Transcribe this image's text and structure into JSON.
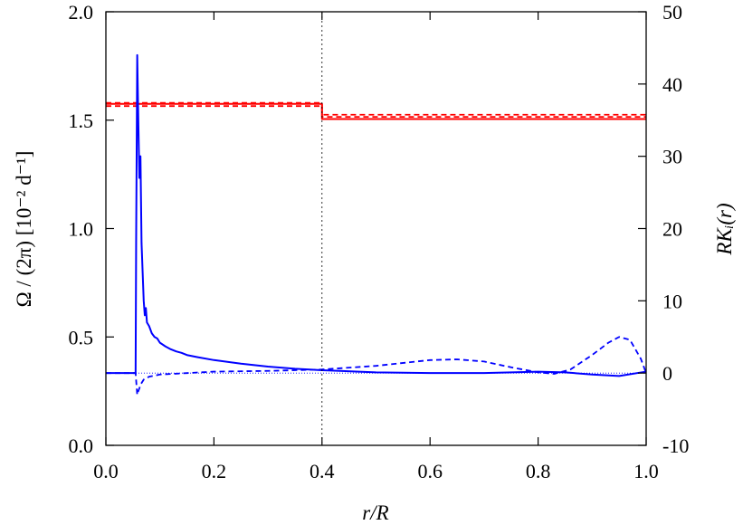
{
  "chart_data": {
    "type": "line",
    "xlabel": "r/R",
    "ylabel_left": "Ω / (2π) [10⁻² d⁻¹]",
    "ylabel_right": "RKᵢ(r)",
    "xlim": [
      0.0,
      1.0
    ],
    "ylim_left": [
      0.0,
      2.0
    ],
    "ylim_right": [
      -10,
      50
    ],
    "x_ticks": [
      "0.0",
      "0.2",
      "0.4",
      "0.6",
      "0.8",
      "1.0"
    ],
    "y_left_ticks": [
      "0.0",
      "0.5",
      "1.0",
      "1.5",
      "2.0"
    ],
    "y_right_ticks": [
      "-10",
      "0",
      "10",
      "20",
      "30",
      "40",
      "50"
    ],
    "grid": false,
    "vertical_line_x": 0.4,
    "series": [
      {
        "axis": "left",
        "color": "#ff0000",
        "style": "solid",
        "x": [
          0.0,
          0.4,
          0.4,
          1.0
        ],
        "y": [
          1.575,
          1.575,
          1.505,
          1.505
        ]
      },
      {
        "axis": "left",
        "color": "#ff0000",
        "style": "dashed",
        "x": [
          0.0,
          0.4,
          0.4,
          1.0
        ],
        "y": [
          1.565,
          1.565,
          1.525,
          1.525
        ]
      },
      {
        "axis": "left",
        "color": "#ff0000",
        "style": "dashed",
        "x": [
          0.0,
          0.4,
          0.4,
          1.0
        ],
        "y": [
          1.58,
          1.58,
          1.515,
          1.515
        ]
      },
      {
        "axis": "right",
        "color": "#0000ff",
        "style": "solid",
        "x": [
          0.0,
          0.055,
          0.056,
          0.058,
          0.06,
          0.062,
          0.064,
          0.066,
          0.068,
          0.07,
          0.072,
          0.074,
          0.076,
          0.08,
          0.085,
          0.09,
          0.095,
          0.1,
          0.11,
          0.12,
          0.13,
          0.14,
          0.15,
          0.17,
          0.2,
          0.25,
          0.3,
          0.35,
          0.4,
          0.5,
          0.6,
          0.7,
          0.8,
          0.85,
          0.9,
          0.95,
          1.0
        ],
        "y": [
          0,
          0,
          18,
          44,
          35,
          27,
          30,
          18,
          14,
          10,
          8,
          9,
          7,
          6.5,
          5.5,
          5,
          4.8,
          4.2,
          3.7,
          3.3,
          3.0,
          2.8,
          2.5,
          2.2,
          1.8,
          1.3,
          0.9,
          0.6,
          0.4,
          0.1,
          0.0,
          0.0,
          0.2,
          0.1,
          -0.2,
          -0.4,
          0.2
        ]
      },
      {
        "axis": "right",
        "color": "#0000ff",
        "style": "dashed",
        "x": [
          0.0,
          0.055,
          0.056,
          0.058,
          0.06,
          0.065,
          0.07,
          0.08,
          0.1,
          0.15,
          0.2,
          0.3,
          0.4,
          0.5,
          0.6,
          0.65,
          0.7,
          0.75,
          0.8,
          0.83,
          0.86,
          0.9,
          0.93,
          0.95,
          0.97,
          0.99,
          1.0
        ],
        "y": [
          0,
          0,
          -1,
          -3,
          -2.5,
          -1.5,
          -0.9,
          -0.5,
          -0.2,
          0.0,
          0.2,
          0.3,
          0.5,
          1.0,
          1.8,
          1.9,
          1.6,
          0.8,
          0.1,
          -0.1,
          0.5,
          2.5,
          4.2,
          5.0,
          4.6,
          2.0,
          0.0
        ]
      },
      {
        "axis": "right",
        "color": "#0000ff",
        "style": "thin",
        "x": [
          0.0,
          1.0
        ],
        "y": [
          0,
          0
        ]
      }
    ]
  }
}
